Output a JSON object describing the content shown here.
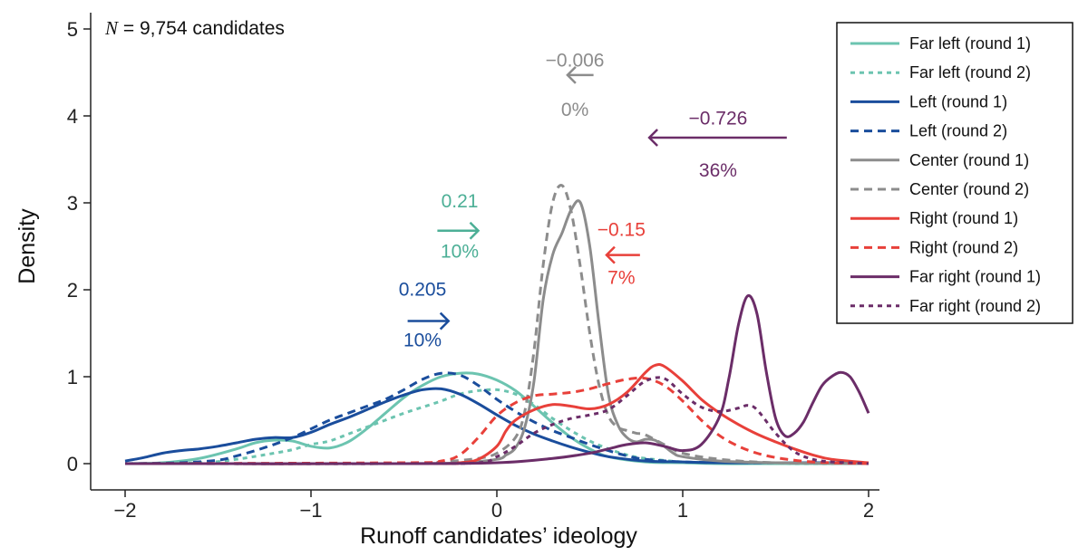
{
  "chart_data": {
    "type": "line",
    "title": "",
    "xlabel": "Runoff candidates’ ideology",
    "ylabel": "Density",
    "xlim": [
      -2,
      2
    ],
    "ylim": [
      0,
      5
    ],
    "xticks": [
      -2,
      -1,
      0,
      1,
      2
    ],
    "xtick_labels": [
      "−2",
      "−1",
      "0",
      "1",
      "2"
    ],
    "yticks": [
      0,
      1,
      2,
      3,
      4,
      5
    ],
    "ytick_labels": [
      "0",
      "1",
      "2",
      "3",
      "4",
      "5"
    ],
    "sample_note": {
      "prefix": "N",
      "text": " = 9,754 candidates"
    },
    "legend_position": "top-right",
    "series": [
      {
        "name": "Far left (round 1)",
        "color": "#6cc4b0",
        "dash": "solid",
        "x": [
          -2,
          -1.8,
          -1.6,
          -1.4,
          -1.3,
          -1.2,
          -1.1,
          -1.0,
          -0.9,
          -0.8,
          -0.7,
          -0.6,
          -0.5,
          -0.4,
          -0.3,
          -0.2,
          -0.1,
          0,
          0.1,
          0.2,
          0.3,
          0.4,
          0.5,
          0.6,
          0.8,
          1.0,
          1.2,
          1.5,
          2.0
        ],
        "y": [
          0,
          0.01,
          0.06,
          0.17,
          0.24,
          0.27,
          0.26,
          0.2,
          0.18,
          0.25,
          0.4,
          0.58,
          0.76,
          0.9,
          1.0,
          1.04,
          1.03,
          0.96,
          0.84,
          0.66,
          0.47,
          0.3,
          0.17,
          0.08,
          0.02,
          0.01,
          0,
          0,
          0
        ]
      },
      {
        "name": "Far left (round 2)",
        "color": "#6cc4b0",
        "dash": "dash-short",
        "x": [
          -2,
          -1.6,
          -1.4,
          -1.2,
          -1.1,
          -1.0,
          -0.9,
          -0.8,
          -0.7,
          -0.6,
          -0.5,
          -0.4,
          -0.3,
          -0.2,
          -0.1,
          0,
          0.1,
          0.2,
          0.3,
          0.4,
          0.5,
          0.6,
          0.7,
          0.8,
          1.0,
          1.2,
          1.5,
          2.0
        ],
        "y": [
          0,
          0.01,
          0.05,
          0.12,
          0.16,
          0.22,
          0.26,
          0.34,
          0.42,
          0.5,
          0.58,
          0.65,
          0.72,
          0.8,
          0.84,
          0.85,
          0.8,
          0.68,
          0.52,
          0.38,
          0.26,
          0.17,
          0.1,
          0.06,
          0.02,
          0.01,
          0,
          0
        ]
      },
      {
        "name": "Left (round 1)",
        "color": "#1a4d9c",
        "dash": "solid",
        "x": [
          -2,
          -1.9,
          -1.8,
          -1.7,
          -1.6,
          -1.5,
          -1.4,
          -1.3,
          -1.2,
          -1.1,
          -1.0,
          -0.9,
          -0.8,
          -0.7,
          -0.6,
          -0.5,
          -0.4,
          -0.3,
          -0.2,
          -0.1,
          0,
          0.1,
          0.2,
          0.3,
          0.4,
          0.5,
          0.6,
          0.8,
          1.0,
          1.2,
          1.5,
          2.0
        ],
        "y": [
          0.03,
          0.07,
          0.12,
          0.15,
          0.17,
          0.2,
          0.24,
          0.28,
          0.3,
          0.3,
          0.36,
          0.45,
          0.53,
          0.62,
          0.71,
          0.79,
          0.85,
          0.86,
          0.8,
          0.69,
          0.56,
          0.44,
          0.34,
          0.26,
          0.19,
          0.13,
          0.08,
          0.03,
          0.02,
          0.01,
          0.01,
          0.01
        ]
      },
      {
        "name": "Left (round 2)",
        "color": "#1a4d9c",
        "dash": "dash",
        "x": [
          -2,
          -1.7,
          -1.5,
          -1.4,
          -1.3,
          -1.2,
          -1.1,
          -1.0,
          -0.9,
          -0.8,
          -0.7,
          -0.6,
          -0.5,
          -0.4,
          -0.3,
          -0.2,
          -0.1,
          0,
          0.1,
          0.2,
          0.3,
          0.4,
          0.5,
          0.6,
          0.7,
          0.8,
          1.0,
          1.3,
          1.6,
          2.0
        ],
        "y": [
          0,
          0.01,
          0.04,
          0.09,
          0.15,
          0.22,
          0.3,
          0.4,
          0.5,
          0.58,
          0.66,
          0.74,
          0.85,
          0.97,
          1.04,
          1.02,
          0.9,
          0.74,
          0.6,
          0.48,
          0.38,
          0.3,
          0.22,
          0.15,
          0.09,
          0.05,
          0.02,
          0.01,
          0.01,
          0.01
        ]
      },
      {
        "name": "Center (round 1)",
        "color": "#8c8c8c",
        "dash": "solid",
        "x": [
          -2,
          -0.5,
          -0.2,
          0,
          0.05,
          0.1,
          0.15,
          0.2,
          0.25,
          0.3,
          0.35,
          0.4,
          0.45,
          0.5,
          0.55,
          0.6,
          0.65,
          0.7,
          0.75,
          0.8,
          0.85,
          0.9,
          0.95,
          1.0,
          1.2,
          1.5,
          2.0
        ],
        "y": [
          0,
          0,
          0.01,
          0.05,
          0.1,
          0.18,
          0.42,
          0.95,
          1.9,
          2.4,
          2.65,
          2.92,
          3.0,
          2.5,
          1.6,
          0.8,
          0.45,
          0.3,
          0.25,
          0.28,
          0.27,
          0.2,
          0.12,
          0.08,
          0.03,
          0.01,
          0
        ]
      },
      {
        "name": "Center (round 2)",
        "color": "#8c8c8c",
        "dash": "dash",
        "x": [
          -2,
          -0.5,
          -0.3,
          -0.1,
          0,
          0.1,
          0.15,
          0.2,
          0.25,
          0.3,
          0.35,
          0.4,
          0.45,
          0.5,
          0.55,
          0.6,
          0.65,
          0.7,
          0.75,
          0.8,
          0.9,
          1.0,
          1.2,
          1.5,
          2.0
        ],
        "y": [
          0,
          0,
          0.02,
          0.06,
          0.12,
          0.3,
          0.6,
          1.3,
          2.3,
          3.0,
          3.2,
          2.9,
          2.25,
          1.5,
          0.9,
          0.55,
          0.42,
          0.38,
          0.35,
          0.33,
          0.22,
          0.12,
          0.05,
          0.01,
          0
        ]
      },
      {
        "name": "Right (round 1)",
        "color": "#e8403a",
        "dash": "solid",
        "x": [
          -2,
          -0.4,
          -0.2,
          -0.1,
          0,
          0.05,
          0.1,
          0.2,
          0.3,
          0.4,
          0.5,
          0.6,
          0.7,
          0.8,
          0.85,
          0.9,
          1.0,
          1.1,
          1.2,
          1.3,
          1.4,
          1.5,
          1.6,
          1.7,
          1.8,
          2.0
        ],
        "y": [
          0,
          0,
          0.01,
          0.05,
          0.2,
          0.38,
          0.5,
          0.62,
          0.68,
          0.66,
          0.63,
          0.68,
          0.82,
          1.05,
          1.13,
          1.12,
          0.95,
          0.74,
          0.58,
          0.45,
          0.34,
          0.25,
          0.17,
          0.1,
          0.05,
          0.01
        ]
      },
      {
        "name": "Right (round 2)",
        "color": "#e8403a",
        "dash": "dash",
        "x": [
          -2,
          -0.5,
          -0.3,
          -0.2,
          -0.1,
          0,
          0.1,
          0.2,
          0.3,
          0.4,
          0.5,
          0.6,
          0.7,
          0.8,
          0.9,
          1.0,
          1.1,
          1.2,
          1.3,
          1.4,
          1.5,
          1.6,
          1.7,
          1.8,
          2.0
        ],
        "y": [
          0,
          0.01,
          0.03,
          0.1,
          0.3,
          0.55,
          0.7,
          0.78,
          0.8,
          0.82,
          0.86,
          0.92,
          0.97,
          0.98,
          0.9,
          0.72,
          0.5,
          0.32,
          0.2,
          0.12,
          0.07,
          0.04,
          0.02,
          0.01,
          0
        ]
      },
      {
        "name": "Far right (round 1)",
        "color": "#6b2d68",
        "dash": "solid",
        "x": [
          -2,
          -0.5,
          0,
          0.3,
          0.5,
          0.6,
          0.7,
          0.8,
          0.9,
          1.0,
          1.1,
          1.2,
          1.25,
          1.3,
          1.35,
          1.4,
          1.45,
          1.5,
          1.55,
          1.6,
          1.65,
          1.7,
          1.75,
          1.8,
          1.85,
          1.9,
          1.95,
          2.0
        ],
        "y": [
          0,
          0,
          0.01,
          0.06,
          0.12,
          0.17,
          0.22,
          0.24,
          0.2,
          0.15,
          0.22,
          0.55,
          1.0,
          1.6,
          1.93,
          1.72,
          1.05,
          0.52,
          0.32,
          0.35,
          0.48,
          0.7,
          0.9,
          1.0,
          1.05,
          1.0,
          0.82,
          0.58
        ]
      },
      {
        "name": "Far right (round 2)",
        "color": "#6b2d68",
        "dash": "dash-short",
        "x": [
          -2,
          -0.5,
          -0.1,
          0,
          0.1,
          0.2,
          0.3,
          0.4,
          0.5,
          0.6,
          0.7,
          0.8,
          0.9,
          1.0,
          1.1,
          1.2,
          1.3,
          1.35,
          1.4,
          1.5,
          1.6,
          1.7,
          1.8,
          1.9,
          2.0
        ],
        "y": [
          0,
          0,
          0.01,
          0.08,
          0.2,
          0.35,
          0.45,
          0.52,
          0.56,
          0.62,
          0.78,
          0.95,
          0.98,
          0.8,
          0.65,
          0.6,
          0.64,
          0.67,
          0.62,
          0.35,
          0.14,
          0.05,
          0.02,
          0.01,
          0
        ]
      }
    ],
    "annotations": [
      {
        "id": "left",
        "value": "0.205",
        "pct": "10%",
        "color": "#1a4d9c",
        "value_at": [
          -0.4,
          1.93
        ],
        "pct_at": [
          -0.4,
          1.35
        ],
        "arrow_from": [
          -0.48,
          1.64
        ],
        "arrow_to": [
          -0.26,
          1.64
        ]
      },
      {
        "id": "far-left",
        "value": "0.21",
        "pct": "10%",
        "color": "#4caf96",
        "value_at": [
          -0.2,
          2.95
        ],
        "pct_at": [
          -0.2,
          2.37
        ],
        "arrow_from": [
          -0.32,
          2.68
        ],
        "arrow_to": [
          -0.1,
          2.68
        ]
      },
      {
        "id": "center",
        "value": "−0.006",
        "pct": "0%",
        "color": "#8c8c8c",
        "value_at": [
          0.42,
          4.57
        ],
        "pct_at": [
          0.42,
          4.0
        ],
        "arrow_from": [
          0.52,
          4.47
        ],
        "arrow_to": [
          0.38,
          4.47
        ]
      },
      {
        "id": "right",
        "value": "−0.15",
        "pct": "7%",
        "color": "#e8403a",
        "value_at": [
          0.67,
          2.62
        ],
        "pct_at": [
          0.67,
          2.07
        ],
        "arrow_from": [
          0.77,
          2.4
        ],
        "arrow_to": [
          0.59,
          2.4
        ]
      },
      {
        "id": "far-right",
        "value": "−0.726",
        "pct": "36%",
        "color": "#6b2d68",
        "value_at": [
          1.19,
          3.9
        ],
        "pct_at": [
          1.19,
          3.3
        ],
        "arrow_from": [
          1.56,
          3.75
        ],
        "arrow_to": [
          0.82,
          3.75
        ]
      }
    ]
  }
}
